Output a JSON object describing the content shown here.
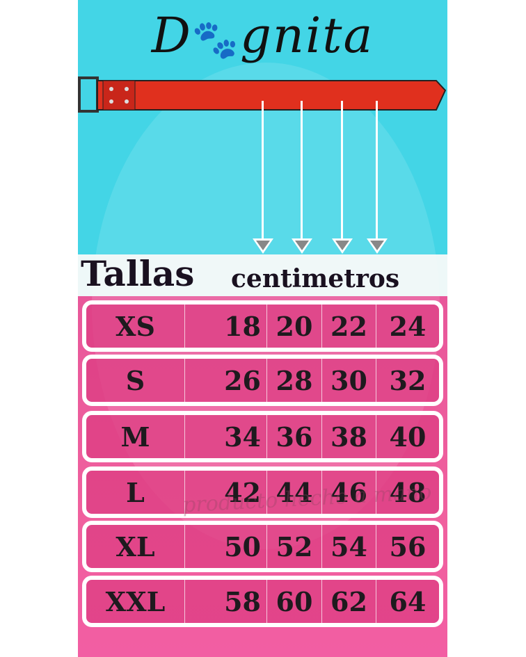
{
  "brand": {
    "name_prefix": "D",
    "name_suffix": "gnita",
    "logo_icon": "paw-print-icon"
  },
  "heading": {
    "title": "Tallas",
    "unit": "centimetros"
  },
  "sizes": [
    {
      "size": "XS",
      "values": [
        "18",
        "20",
        "22",
        "24"
      ]
    },
    {
      "size": "S",
      "values": [
        "26",
        "28",
        "30",
        "32"
      ]
    },
    {
      "size": "M",
      "values": [
        "34",
        "36",
        "38",
        "40"
      ]
    },
    {
      "size": "L",
      "values": [
        "42",
        "44",
        "46",
        "48"
      ]
    },
    {
      "size": "XL",
      "values": [
        "50",
        "52",
        "54",
        "56"
      ]
    },
    {
      "size": "XXL",
      "values": [
        "58",
        "60",
        "62",
        "64"
      ]
    }
  ],
  "watermark": "producto hecho a mano",
  "colors": {
    "sky": "#43d5e6",
    "pink": "#ef5f9b",
    "collar": "#e0301e"
  }
}
